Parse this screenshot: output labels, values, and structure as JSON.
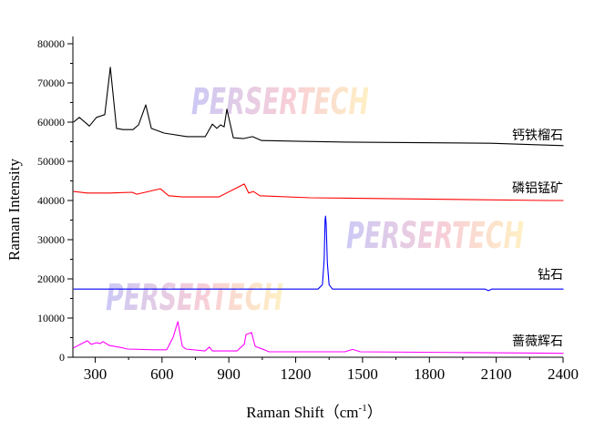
{
  "watermark": "PERSERTECH",
  "chart_data": {
    "type": "line",
    "title": "",
    "xlabel": "Raman Shift（cm",
    "xlabel_sup": "-1",
    "xlabel_tail": "）",
    "ylabel": "Raman Intensity",
    "xlim": [
      200,
      2400
    ],
    "ylim": [
      0,
      80000
    ],
    "xticks": [
      300,
      600,
      900,
      1200,
      1500,
      1800,
      2100,
      2400
    ],
    "yticks": [
      0,
      10000,
      20000,
      30000,
      40000,
      50000,
      60000,
      70000,
      80000
    ],
    "grid": false,
    "legend": "inline labels at right end of each trace",
    "series": [
      {
        "name": "钙铁榴石",
        "color": "#000000",
        "x": [
          203,
          229,
          274,
          306,
          343,
          368,
          396,
          425,
          470,
          495,
          527,
          552,
          609,
          712,
          794,
          826,
          846,
          863,
          879,
          891,
          920,
          965,
          1006,
          1047,
          1223,
          1428,
          2075,
          2402
        ],
        "y": [
          60000,
          61200,
          59000,
          61200,
          61900,
          74000,
          58400,
          58100,
          58100,
          59300,
          64400,
          58400,
          57200,
          56300,
          56300,
          59500,
          58400,
          59300,
          58800,
          63300,
          56000,
          55800,
          56300,
          55300,
          55100,
          54900,
          54600,
          54000
        ]
      },
      {
        "name": "磷铝锰矿",
        "color": "#ff0000",
        "x": [
          203,
          264,
          366,
          466,
          487,
          592,
          630,
          691,
          855,
          969,
          989,
          1010,
          1039,
          1264,
          2328,
          2402
        ],
        "y": [
          42300,
          41900,
          41900,
          42100,
          41600,
          43000,
          41200,
          40900,
          40900,
          44200,
          41900,
          42300,
          41200,
          40700,
          40000,
          40000
        ]
      },
      {
        "name": "钻石",
        "color": "#0000ff",
        "x": [
          203,
          1300,
          1320,
          1328,
          1332,
          1334,
          1337,
          1342,
          1350,
          1365,
          2050,
          2065,
          2080,
          2402
        ],
        "y": [
          17400,
          17400,
          18500,
          25000,
          35000,
          36000,
          34000,
          24000,
          18500,
          17400,
          17400,
          17000,
          17400,
          17400
        ]
      },
      {
        "name": "蔷薇辉石",
        "color": "#ff00ff",
        "x": [
          203,
          265,
          282,
          306,
          323,
          335,
          364,
          405,
          446,
          568,
          621,
          650,
          671,
          691,
          707,
          793,
          813,
          826,
          936,
          969,
          977,
          1002,
          1018,
          1059,
          1080,
          1420,
          1456,
          1490,
          2402
        ],
        "y": [
          2400,
          4200,
          3300,
          3700,
          3500,
          4000,
          3000,
          2600,
          2100,
          1900,
          1900,
          5100,
          9100,
          2800,
          2100,
          1600,
          2600,
          1600,
          1600,
          3300,
          5800,
          6300,
          2800,
          1900,
          1400,
          1400,
          2000,
          1400,
          1000
        ]
      }
    ]
  }
}
